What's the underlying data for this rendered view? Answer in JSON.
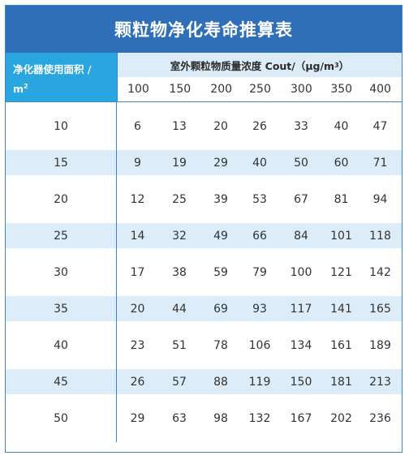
{
  "title": "颗粒物净化寿命推算表",
  "header": {
    "area_label": "净化器使用面积 /",
    "area_unit": "m",
    "area_unit_sup": "2",
    "conc_label": "室外颗粒物质量浓度 Cout/（μg/m",
    "conc_sup": "3",
    "conc_tail": "）",
    "columns": [
      "100",
      "150",
      "200",
      "250",
      "300",
      "350",
      "400"
    ]
  },
  "rows": [
    {
      "area": "10",
      "values": [
        "6",
        "13",
        "20",
        "26",
        "33",
        "40",
        "47"
      ]
    },
    {
      "area": "15",
      "values": [
        "9",
        "19",
        "29",
        "40",
        "50",
        "60",
        "71"
      ]
    },
    {
      "area": "20",
      "values": [
        "12",
        "25",
        "39",
        "53",
        "67",
        "81",
        "94"
      ]
    },
    {
      "area": "25",
      "values": [
        "14",
        "32",
        "49",
        "66",
        "84",
        "101",
        "118"
      ]
    },
    {
      "area": "30",
      "values": [
        "17",
        "38",
        "59",
        "79",
        "100",
        "121",
        "142"
      ]
    },
    {
      "area": "35",
      "values": [
        "20",
        "44",
        "69",
        "93",
        "117",
        "141",
        "165"
      ]
    },
    {
      "area": "40",
      "values": [
        "23",
        "51",
        "78",
        "106",
        "134",
        "161",
        "189"
      ]
    },
    {
      "area": "45",
      "values": [
        "26",
        "57",
        "88",
        "119",
        "150",
        "181",
        "213"
      ]
    },
    {
      "area": "50",
      "values": [
        "29",
        "63",
        "98",
        "132",
        "167",
        "202",
        "236"
      ]
    }
  ],
  "colors": {
    "title_bg": "#2f6fb8",
    "area_header_bg": "#29a6e0",
    "stripe_bg": "#dcecf8",
    "border": "#3f84c8"
  }
}
